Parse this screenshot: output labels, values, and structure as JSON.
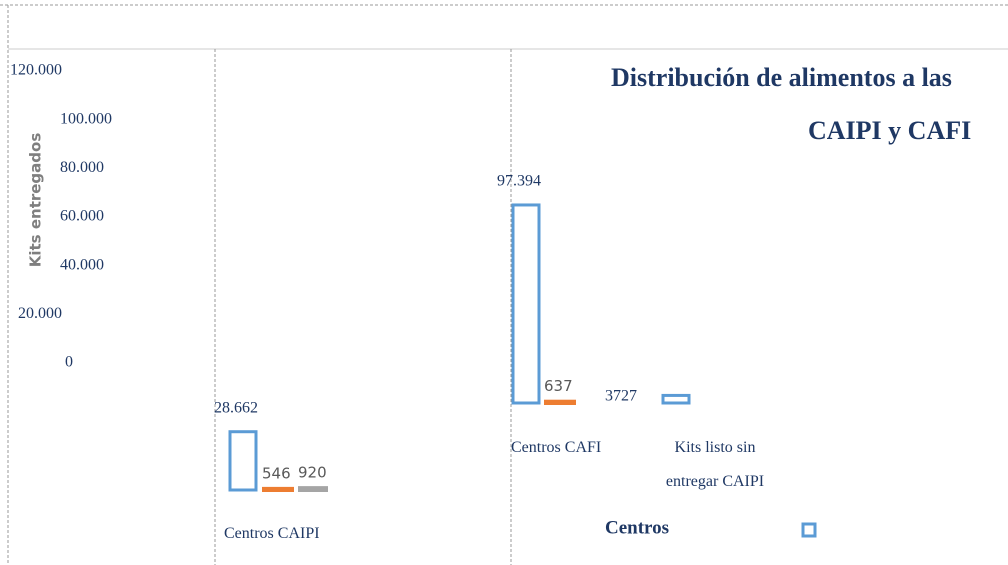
{
  "chart_data": {
    "type": "bar",
    "title": [
      "Distribución de alimentos a las",
      "CAIPI y CAFI"
    ],
    "y_label": "Kits entregados",
    "categories": [
      "Centros CAIPI",
      "Centros CAFI",
      "Kits listo sin entregar CAIPI"
    ],
    "series": [
      {
        "name": "Centros",
        "color": "#5b9bd5",
        "values": [
          28662,
          97394,
          3727
        ],
        "value_labels": [
          "28.662",
          "97.394",
          "3727"
        ]
      },
      {
        "color": "#ed7d31",
        "values": [
          546,
          637,
          null
        ]
      },
      {
        "color": "#a5a5a5",
        "values": [
          920,
          null,
          null
        ]
      }
    ],
    "ylim": [
      0,
      120000
    ],
    "yticks": [
      0,
      {
        "value": 20000,
        "label": "20.000"
      },
      {
        "value": 40000,
        "label": "40.000"
      },
      {
        "value": 60000,
        "label": "60.000"
      },
      {
        "value": 80000,
        "label": "80.000"
      },
      {
        "value": 100000,
        "label": "100.000"
      },
      {
        "value": 120000,
        "label": "120.000"
      }
    ]
  }
}
